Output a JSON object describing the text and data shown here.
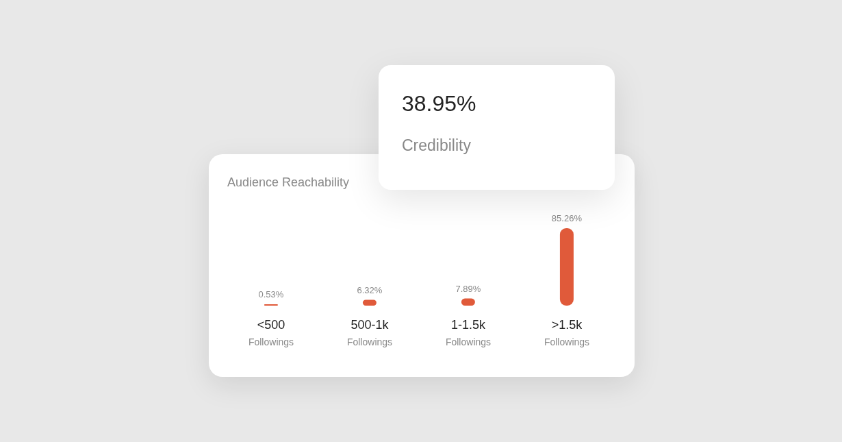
{
  "chart_data": [
    {
      "type": "other",
      "annotations": [
        "38.95%",
        "Credibility"
      ]
    },
    {
      "type": "bar",
      "title": "Audience Reachability",
      "categories": [
        "<500\nFollowings",
        "500-1k\nFollowings",
        "1-1.5k\nFollowings",
        ">1.5k\nFollowings"
      ],
      "values": [
        0.53,
        6.32,
        7.89,
        85.26
      ],
      "color": "#e05a3a",
      "value_labels": [
        "0.53%",
        "6.32%",
        "7.89%",
        "85.26%"
      ]
    }
  ]
}
